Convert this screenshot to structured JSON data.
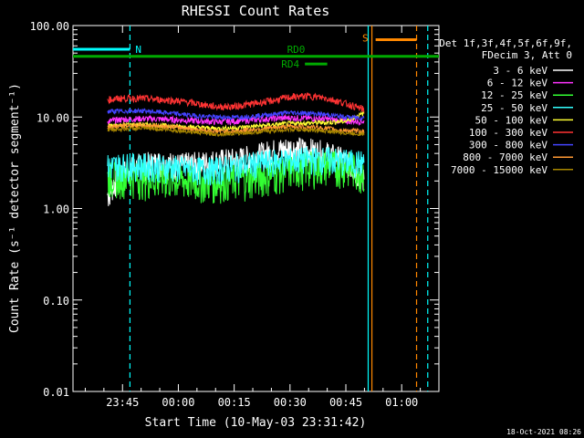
{
  "chart_data": {
    "type": "line",
    "title": "RHESSI Count Rates",
    "xlabel": "Start Time (10-May-03 23:31:42)",
    "ylabel": "Count Rate (s⁻¹ detector segment⁻¹)",
    "yscale": "log",
    "ylim": [
      0.01,
      100
    ],
    "xlim": [
      "23:31:42",
      "01:10:00"
    ],
    "x_ticks": [
      "23:45",
      "00:00",
      "00:15",
      "00:30",
      "00:45",
      "01:00"
    ],
    "y_ticks": [
      "0.01",
      "0.10",
      "1.00",
      "10.00",
      "100.00"
    ],
    "legend_header": [
      "Det 1f,3f,4f,5f,6f,9f,",
      "FDecim 3, Att 0"
    ],
    "legend_position": "right",
    "footer_date": "18-Oct-2021 08:26",
    "series": [
      {
        "name": "3 - 6 keV",
        "color": "#ffffff",
        "x": [
          "23:41",
          "23:45",
          "23:50",
          "23:55",
          "00:00",
          "00:05",
          "00:10",
          "00:15",
          "00:20",
          "00:25",
          "00:30",
          "00:35",
          "00:40",
          "00:45",
          "00:50"
        ],
        "values": [
          1.4,
          2.5,
          3.0,
          3.2,
          3.0,
          3.1,
          3.3,
          3.4,
          3.7,
          4.2,
          4.6,
          4.4,
          4.0,
          3.3,
          2.0
        ]
      },
      {
        "name": "6 - 12 keV",
        "color": "#ff33ff",
        "x": [
          "23:41",
          "23:45",
          "23:50",
          "23:55",
          "00:00",
          "00:05",
          "00:10",
          "00:15",
          "00:20",
          "00:25",
          "00:30",
          "00:35",
          "00:40",
          "00:45",
          "00:50"
        ],
        "values": [
          9.0,
          9.4,
          9.6,
          9.5,
          9.3,
          9.1,
          8.9,
          9.0,
          9.3,
          9.6,
          9.8,
          9.7,
          9.5,
          9.0,
          9.0
        ]
      },
      {
        "name": "12 - 25 keV",
        "color": "#33ff33",
        "x": [
          "23:41",
          "23:45",
          "23:50",
          "23:55",
          "00:00",
          "00:05",
          "00:10",
          "00:15",
          "00:20",
          "00:25",
          "00:30",
          "00:35",
          "00:40",
          "00:45",
          "00:50"
        ],
        "values": [
          2.2,
          2.3,
          2.2,
          2.1,
          2.1,
          2.0,
          2.0,
          2.1,
          2.2,
          2.4,
          2.7,
          2.9,
          3.0,
          2.9,
          2.5
        ]
      },
      {
        "name": "25 - 50 keV",
        "color": "#33ffff",
        "x": [
          "23:41",
          "23:45",
          "23:50",
          "23:55",
          "00:00",
          "00:05",
          "00:10",
          "00:15",
          "00:20",
          "00:25",
          "00:30",
          "00:35",
          "00:40",
          "00:45",
          "00:50"
        ],
        "values": [
          2.9,
          3.0,
          3.0,
          2.9,
          2.8,
          2.7,
          2.7,
          2.9,
          3.1,
          3.3,
          3.4,
          3.5,
          3.5,
          3.3,
          3.2
        ]
      },
      {
        "name": "50 - 100 keV",
        "color": "#ffff33",
        "x": [
          "23:41",
          "23:45",
          "23:50",
          "23:55",
          "00:00",
          "00:05",
          "00:10",
          "00:15",
          "00:20",
          "00:25",
          "00:30",
          "00:35",
          "00:40",
          "00:45",
          "00:50"
        ],
        "values": [
          8.0,
          8.2,
          8.3,
          8.1,
          7.9,
          7.7,
          7.5,
          7.6,
          7.9,
          8.2,
          8.5,
          8.6,
          8.7,
          9.0,
          11.0
        ]
      },
      {
        "name": "100 - 300 keV",
        "color": "#ff3333",
        "x": [
          "23:41",
          "23:45",
          "23:50",
          "23:55",
          "00:00",
          "00:05",
          "00:10",
          "00:15",
          "00:20",
          "00:25",
          "00:30",
          "00:35",
          "00:40",
          "00:45",
          "00:50"
        ],
        "values": [
          15.5,
          16.0,
          16.0,
          15.5,
          15.0,
          14.0,
          13.0,
          13.0,
          14.0,
          15.0,
          16.5,
          17.0,
          16.0,
          14.0,
          12.0
        ]
      },
      {
        "name": "300 - 800 keV",
        "color": "#4444ff",
        "x": [
          "23:41",
          "23:45",
          "23:50",
          "23:55",
          "00:00",
          "00:05",
          "00:10",
          "00:15",
          "00:20",
          "00:25",
          "00:30",
          "00:35",
          "00:40",
          "00:45",
          "00:50"
        ],
        "values": [
          11.5,
          11.6,
          11.7,
          11.3,
          10.8,
          10.3,
          10.0,
          9.9,
          10.2,
          10.7,
          11.2,
          11.0,
          10.6,
          10.0,
          9.8
        ]
      },
      {
        "name": "800 - 7000 keV",
        "color": "#ff9933",
        "x": [
          "23:41",
          "23:45",
          "23:50",
          "23:55",
          "00:00",
          "00:05",
          "00:10",
          "00:15",
          "00:20",
          "00:25",
          "00:30",
          "00:35",
          "00:40",
          "00:45",
          "00:50"
        ],
        "values": [
          7.8,
          8.0,
          8.1,
          8.0,
          7.7,
          7.3,
          7.0,
          7.0,
          7.3,
          7.6,
          7.9,
          7.8,
          7.5,
          7.1,
          7.0
        ]
      },
      {
        "name": "7000 - 15000 keV",
        "color": "#aa8800",
        "x": [
          "23:41",
          "23:45",
          "23:50",
          "23:55",
          "00:00",
          "00:05",
          "00:10",
          "00:15",
          "00:20",
          "00:25",
          "00:30",
          "00:35",
          "00:40",
          "00:45",
          "00:50"
        ],
        "values": [
          7.2,
          7.4,
          7.5,
          7.4,
          7.1,
          6.8,
          6.5,
          6.6,
          6.8,
          7.1,
          7.3,
          7.2,
          7.0,
          6.7,
          6.5
        ]
      }
    ],
    "annotations": [
      {
        "label": "N",
        "color": "#00ffff",
        "x_start": "23:31:42",
        "x_end": "23:47",
        "y": 55
      },
      {
        "label": "S",
        "color": "#ff8800",
        "x_start": "00:53",
        "x_end": "01:04",
        "y": 70
      },
      {
        "label": "RD0",
        "color": "#00aa00",
        "x_start": "23:31:42",
        "x_end": "01:10",
        "y": 46
      },
      {
        "label": "RD4",
        "color": "#00aa00",
        "x_start": "00:34",
        "x_end": "00:40",
        "y": 38
      }
    ],
    "vlines": [
      {
        "color": "#00ffff",
        "style": "dashed",
        "x": "23:47"
      },
      {
        "color": "#00ffff",
        "style": "solid",
        "x": "00:51"
      },
      {
        "color": "#ff8800",
        "style": "solid",
        "x": "00:52"
      },
      {
        "color": "#ff8800",
        "style": "dashed",
        "x": "01:04"
      },
      {
        "color": "#00ffff",
        "style": "dashed",
        "x": "01:07"
      }
    ]
  }
}
